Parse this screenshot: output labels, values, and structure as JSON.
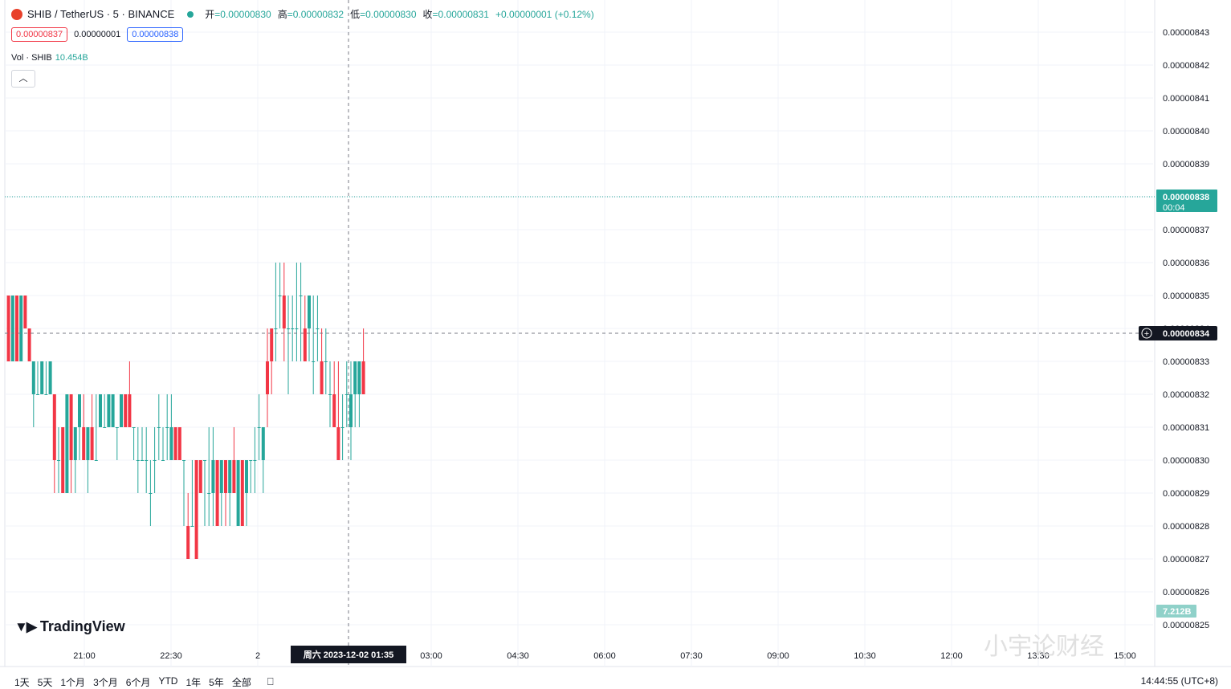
{
  "header": {
    "symbol": "SHIB / TetherUS · 5 · BINANCE",
    "ohlc": [
      {
        "label": "开",
        "value": "=0.00000830"
      },
      {
        "label": "高",
        "value": "=0.00000832"
      },
      {
        "label": "低",
        "value": "=0.00000830"
      },
      {
        "label": "收",
        "value": "=0.00000831"
      }
    ],
    "change": "+0.00000001 (+0.12%)"
  },
  "prices": {
    "sell": "0.00000837",
    "spread": "0.00000001",
    "buy": "0.00000838"
  },
  "volume": {
    "label": "Vol · SHIB",
    "value": "10.454B"
  },
  "logo_text": "TradingView",
  "timeframes": [
    "1天",
    "5天",
    "1个月",
    "3个月",
    "6个月",
    "YTD",
    "1年",
    "5年",
    "全部"
  ],
  "clock": "14:44:55 (UTC+8)",
  "crosshair_time": "周六 2023-12-02   01:35",
  "last_price": {
    "value": "0.00000838",
    "countdown": "00:04"
  },
  "crosshair_price": "0.00000834",
  "volume_badge": "7.212B",
  "watermark": "小宇论财经",
  "colors": {
    "up": "#26a69a",
    "down": "#f23645",
    "up_vol": "#8fd1c9",
    "down_vol": "#f7a3a8",
    "grid": "#f0f3fa"
  },
  "chart_data": {
    "type": "candlestick",
    "yaxis": {
      "range": [
        8.25e-06,
        8.43e-06
      ],
      "ticks": [
        "0.00000843",
        "0.00000842",
        "0.00000841",
        "0.00000840",
        "0.00000839",
        "0.00000838",
        "0.00000837",
        "0.00000836",
        "0.00000835",
        "0.00000834",
        "0.00000833",
        "0.00000832",
        "0.00000831",
        "0.00000830",
        "0.00000829",
        "0.00000828",
        "0.00000827",
        "0.00000826",
        "0.00000825"
      ]
    },
    "xaxis": {
      "ticks": [
        "21:00",
        "22:30",
        "2",
        "03:00",
        "04:30",
        "06:00",
        "07:30",
        "09:00",
        "10:30",
        "12:00",
        "13:30",
        "15:00"
      ]
    },
    "candles": [
      [
        835,
        835,
        833,
        833
      ],
      [
        833,
        835,
        833,
        835
      ],
      [
        835,
        835,
        833,
        833
      ],
      [
        833,
        835,
        833,
        835
      ],
      [
        835,
        835,
        834,
        834
      ],
      [
        834,
        834,
        833,
        833
      ],
      [
        832,
        833,
        831,
        833
      ],
      [
        832,
        833,
        832,
        832
      ],
      [
        832,
        833,
        832,
        833
      ],
      [
        832,
        833,
        832,
        832
      ],
      [
        832,
        833,
        832,
        833
      ],
      [
        832,
        832,
        829,
        830
      ],
      [
        830,
        831,
        829,
        830
      ],
      [
        831,
        831,
        829,
        829
      ],
      [
        829,
        832,
        829,
        832
      ],
      [
        832,
        832,
        829,
        830
      ],
      [
        830,
        831,
        829,
        831
      ],
      [
        831,
        832,
        830,
        832
      ],
      [
        831,
        832,
        830,
        830
      ],
      [
        830,
        831,
        829,
        831
      ],
      [
        831,
        832,
        830,
        830
      ],
      [
        830,
        832,
        830,
        830
      ],
      [
        831,
        832,
        831,
        832
      ],
      [
        831,
        832,
        831,
        831
      ],
      [
        831,
        832,
        831,
        832
      ],
      [
        831,
        832,
        831,
        832
      ],
      [
        831,
        831,
        830,
        831
      ],
      [
        831,
        832,
        831,
        832
      ],
      [
        832,
        832,
        831,
        831
      ],
      [
        832,
        833,
        831,
        831
      ],
      [
        831,
        831,
        830,
        831
      ],
      [
        830,
        831,
        829,
        830
      ],
      [
        830,
        831,
        830,
        830
      ],
      [
        830,
        831,
        829,
        830
      ],
      [
        829,
        830,
        828,
        829
      ],
      [
        830,
        831,
        829,
        830
      ],
      [
        831,
        832,
        830,
        831
      ],
      [
        830,
        831,
        830,
        830
      ],
      [
        831,
        832,
        830,
        831
      ],
      [
        830,
        832,
        830,
        831
      ],
      [
        831,
        831,
        830,
        830
      ],
      [
        831,
        831,
        830,
        830
      ],
      [
        830,
        830,
        828,
        830
      ],
      [
        828,
        829,
        827,
        827
      ],
      [
        828,
        830,
        828,
        828
      ],
      [
        830,
        830,
        827,
        827
      ],
      [
        830,
        830,
        829,
        829
      ],
      [
        830,
        830,
        828,
        830
      ],
      [
        829,
        831,
        828,
        829
      ],
      [
        829,
        831,
        828,
        830
      ],
      [
        830,
        830,
        828,
        828
      ],
      [
        829,
        830,
        828,
        830
      ],
      [
        830,
        830,
        828,
        829
      ],
      [
        829,
        830,
        828,
        830
      ],
      [
        830,
        831,
        829,
        829
      ],
      [
        828,
        830,
        828,
        830
      ],
      [
        830,
        830,
        828,
        828
      ],
      [
        829,
        830,
        828,
        830
      ],
      [
        830,
        830,
        829,
        830
      ],
      [
        830,
        831,
        829,
        830
      ],
      [
        831,
        832,
        830,
        831
      ],
      [
        830,
        831,
        829,
        831
      ],
      [
        833,
        834,
        831,
        832
      ],
      [
        834,
        834,
        832,
        833
      ],
      [
        834,
        836,
        833,
        834
      ],
      [
        835,
        836,
        834,
        835
      ],
      [
        835,
        836,
        833,
        834
      ],
      [
        834,
        835,
        832,
        834
      ],
      [
        834,
        835,
        833,
        834
      ],
      [
        834,
        836,
        833,
        834
      ],
      [
        835,
        836,
        833,
        835
      ],
      [
        834,
        835,
        833,
        833
      ],
      [
        834,
        835,
        833,
        835
      ],
      [
        833,
        835,
        832,
        833
      ],
      [
        834,
        835,
        833,
        834
      ],
      [
        833,
        834,
        832,
        832
      ],
      [
        833,
        834,
        832,
        833
      ],
      [
        832,
        833,
        831,
        832
      ],
      [
        832,
        833,
        831,
        831
      ],
      [
        831,
        833,
        830,
        830
      ],
      [
        831,
        832,
        830,
        831
      ],
      [
        832,
        833,
        831,
        832
      ],
      [
        831,
        833,
        830,
        832
      ],
      [
        832,
        833,
        831,
        833
      ],
      [
        832,
        833,
        831,
        833
      ],
      [
        833,
        834,
        832,
        832
      ]
    ],
    "volumes": [],
    "volume_scale_max": 9.5
  }
}
